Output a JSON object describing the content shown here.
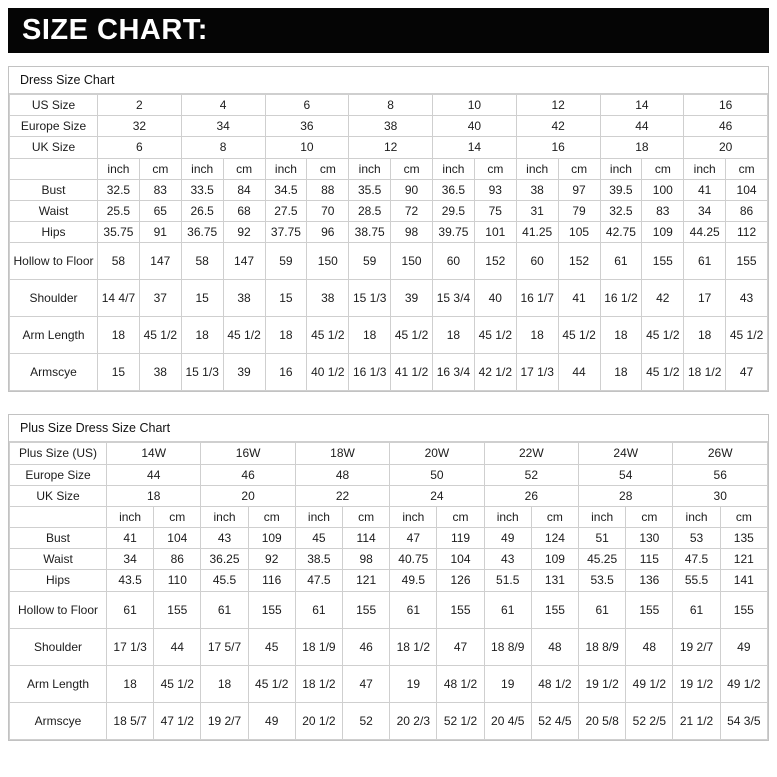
{
  "banner": {
    "title": "SIZE CHART:"
  },
  "colors": {
    "banner_bg": "#050505",
    "banner_text": "#ffffff",
    "table_border": "#cfcfcf",
    "text": "#1c1c1c",
    "background": "#ffffff"
  },
  "chart_data": [
    {
      "type": "table",
      "title": "Dress Size Chart",
      "size_rows": [
        {
          "label": "US Size",
          "values": [
            "2",
            "4",
            "6",
            "8",
            "10",
            "12",
            "14",
            "16"
          ]
        },
        {
          "label": "Europe Size",
          "values": [
            "32",
            "34",
            "36",
            "38",
            "40",
            "42",
            "44",
            "46"
          ]
        },
        {
          "label": "UK Size",
          "values": [
            "6",
            "8",
            "10",
            "12",
            "14",
            "16",
            "18",
            "20"
          ]
        }
      ],
      "unit_labels": [
        "inch",
        "cm"
      ],
      "measure_rows": [
        {
          "label": "Bust",
          "values": [
            "32.5",
            "83",
            "33.5",
            "84",
            "34.5",
            "88",
            "35.5",
            "90",
            "36.5",
            "93",
            "38",
            "97",
            "39.5",
            "100",
            "41",
            "104"
          ]
        },
        {
          "label": "Waist",
          "values": [
            "25.5",
            "65",
            "26.5",
            "68",
            "27.5",
            "70",
            "28.5",
            "72",
            "29.5",
            "75",
            "31",
            "79",
            "32.5",
            "83",
            "34",
            "86"
          ]
        },
        {
          "label": "Hips",
          "values": [
            "35.75",
            "91",
            "36.75",
            "92",
            "37.75",
            "96",
            "38.75",
            "98",
            "39.75",
            "101",
            "41.25",
            "105",
            "42.75",
            "109",
            "44.25",
            "112"
          ]
        },
        {
          "label": "Hollow to Floor",
          "values": [
            "58",
            "147",
            "58",
            "147",
            "59",
            "150",
            "59",
            "150",
            "60",
            "152",
            "60",
            "152",
            "61",
            "155",
            "61",
            "155"
          ]
        },
        {
          "label": "Shoulder",
          "values": [
            "14 4/7",
            "37",
            "15",
            "38",
            "15",
            "38",
            "15 1/3",
            "39",
            "15 3/4",
            "40",
            "16 1/7",
            "41",
            "16 1/2",
            "42",
            "17",
            "43"
          ]
        },
        {
          "label": "Arm Length",
          "values": [
            "18",
            "45 1/2",
            "18",
            "45 1/2",
            "18",
            "45 1/2",
            "18",
            "45 1/2",
            "18",
            "45 1/2",
            "18",
            "45 1/2",
            "18",
            "45 1/2",
            "18",
            "45 1/2"
          ]
        },
        {
          "label": "Armscye",
          "values": [
            "15",
            "38",
            "15 1/3",
            "39",
            "16",
            "40 1/2",
            "16 1/3",
            "41 1/2",
            "16 3/4",
            "42 1/2",
            "17 1/3",
            "44",
            "18",
            "45 1/2",
            "18 1/2",
            "47"
          ]
        }
      ]
    },
    {
      "type": "table",
      "title": "Plus Size Dress Size Chart",
      "size_rows": [
        {
          "label": "Plus Size (US)",
          "values": [
            "14W",
            "16W",
            "18W",
            "20W",
            "22W",
            "24W",
            "26W"
          ]
        },
        {
          "label": "Europe Size",
          "values": [
            "44",
            "46",
            "48",
            "50",
            "52",
            "54",
            "56"
          ]
        },
        {
          "label": "UK Size",
          "values": [
            "18",
            "20",
            "22",
            "24",
            "26",
            "28",
            "30"
          ]
        }
      ],
      "unit_labels": [
        "inch",
        "cm"
      ],
      "measure_rows": [
        {
          "label": "Bust",
          "values": [
            "41",
            "104",
            "43",
            "109",
            "45",
            "114",
            "47",
            "119",
            "49",
            "124",
            "51",
            "130",
            "53",
            "135"
          ]
        },
        {
          "label": "Waist",
          "values": [
            "34",
            "86",
            "36.25",
            "92",
            "38.5",
            "98",
            "40.75",
            "104",
            "43",
            "109",
            "45.25",
            "115",
            "47.5",
            "121"
          ]
        },
        {
          "label": "Hips",
          "values": [
            "43.5",
            "110",
            "45.5",
            "116",
            "47.5",
            "121",
            "49.5",
            "126",
            "51.5",
            "131",
            "53.5",
            "136",
            "55.5",
            "141"
          ]
        },
        {
          "label": "Hollow to Floor",
          "values": [
            "61",
            "155",
            "61",
            "155",
            "61",
            "155",
            "61",
            "155",
            "61",
            "155",
            "61",
            "155",
            "61",
            "155"
          ]
        },
        {
          "label": "Shoulder",
          "values": [
            "17 1/3",
            "44",
            "17 5/7",
            "45",
            "18 1/9",
            "46",
            "18 1/2",
            "47",
            "18 8/9",
            "48",
            "18 8/9",
            "48",
            "19 2/7",
            "49"
          ]
        },
        {
          "label": "Arm Length",
          "values": [
            "18",
            "45 1/2",
            "18",
            "45 1/2",
            "18 1/2",
            "47",
            "19",
            "48 1/2",
            "19",
            "48 1/2",
            "19 1/2",
            "49 1/2",
            "19 1/2",
            "49 1/2"
          ]
        },
        {
          "label": "Armscye",
          "values": [
            "18 5/7",
            "47 1/2",
            "19 2/7",
            "49",
            "20 1/2",
            "52",
            "20 2/3",
            "52 1/2",
            "20 4/5",
            "52 4/5",
            "20 5/8",
            "52 2/5",
            "21 1/2",
            "54 3/5"
          ]
        }
      ]
    }
  ]
}
